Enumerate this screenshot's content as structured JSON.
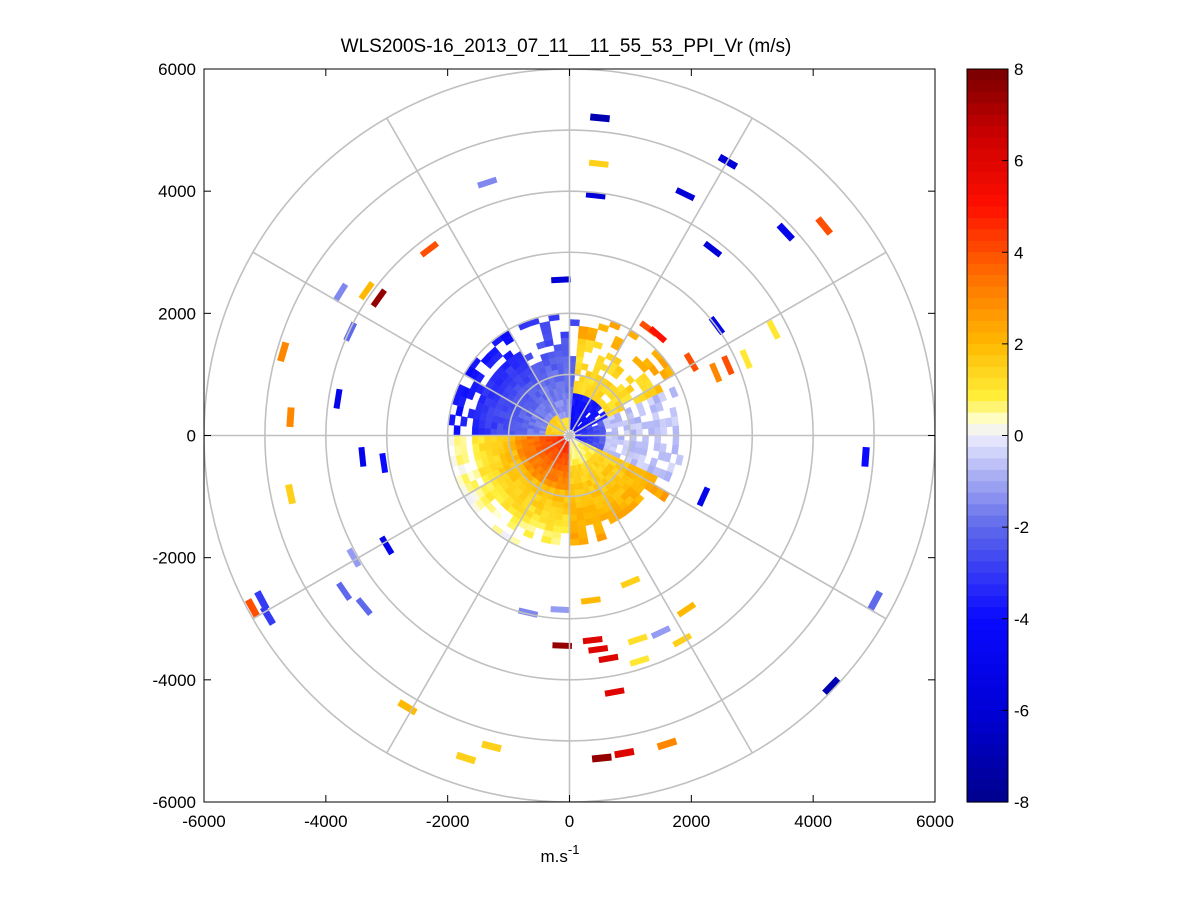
{
  "chart_data": {
    "type": "heatmap",
    "subtype": "polar-ppi-scan",
    "title": "WLS200S-16_2013_07_11__11_55_53_PPI_Vr (m/s)",
    "xlabel": {
      "base": "m.s",
      "superscript": "-1"
    },
    "ylabel": "",
    "xlim": [
      -6000,
      6000
    ],
    "ylim": [
      -6000,
      6000
    ],
    "xticks": [
      "-6000",
      "-4000",
      "-2000",
      "0",
      "2000",
      "4000",
      "6000"
    ],
    "yticks": [
      "6000",
      "4000",
      "2000",
      "0",
      "-2000",
      "-4000",
      "-6000"
    ],
    "xtick_values": [
      -6000,
      -4000,
      -2000,
      0,
      2000,
      4000,
      6000
    ],
    "ytick_values": [
      6000,
      4000,
      2000,
      0,
      -2000,
      -4000,
      -6000
    ],
    "polar_grid": {
      "ring_radii_m": [
        1000,
        2000,
        3000,
        4000,
        5000,
        6000
      ],
      "spoke_angles_deg": [
        0,
        30,
        60,
        90,
        120,
        150,
        180,
        210,
        240,
        270,
        300,
        330
      ],
      "color": "#c0c0c0"
    },
    "colorbar": {
      "min": -8,
      "max": 8,
      "ticks": [
        "8",
        "6",
        "4",
        "2",
        "0",
        "-2",
        "-4",
        "-6",
        "-8"
      ],
      "tick_values": [
        8,
        6,
        4,
        2,
        0,
        -2,
        -4,
        -6,
        -8
      ],
      "colormap": "blue-white-yellow-red"
    },
    "field_model": {
      "description": "Radial velocity (m/s) vs range and azimuth: near-field positive core in SW quadrant, negative NE/W sector, positive S/SE band, scattered far-range gates",
      "max_range_m": 2000
    },
    "isolated_gates": [
      {
        "x": 500,
        "y": 5200,
        "v": -7
      },
      {
        "x": 480,
        "y": 4450,
        "v": 1.5
      },
      {
        "x": 430,
        "y": 3930,
        "v": -6
      },
      {
        "x": -140,
        "y": 2550,
        "v": -6
      },
      {
        "x": 2600,
        "y": 4480,
        "v": -6
      },
      {
        "x": 1900,
        "y": 3950,
        "v": -6
      },
      {
        "x": 2350,
        "y": 3050,
        "v": -6
      },
      {
        "x": 3550,
        "y": 3330,
        "v": -5
      },
      {
        "x": 4180,
        "y": 3430,
        "v": 4
      },
      {
        "x": -1350,
        "y": 4140,
        "v": -1.5
      },
      {
        "x": -2300,
        "y": 3050,
        "v": 4
      },
      {
        "x": -3130,
        "y": 2250,
        "v": 7.5
      },
      {
        "x": -3330,
        "y": 2370,
        "v": 2
      },
      {
        "x": -3760,
        "y": 2340,
        "v": -1.5
      },
      {
        "x": -4700,
        "y": 1370,
        "v": 3
      },
      {
        "x": -4580,
        "y": 300,
        "v": 3
      },
      {
        "x": -4580,
        "y": -960,
        "v": 1.5
      },
      {
        "x": -3540,
        "y": -2000,
        "v": -1.2
      },
      {
        "x": -3700,
        "y": -2550,
        "v": -2
      },
      {
        "x": -3370,
        "y": -2800,
        "v": -2
      },
      {
        "x": -5050,
        "y": -2700,
        "v": -3
      },
      {
        "x": -5200,
        "y": -2830,
        "v": 4
      },
      {
        "x": -4950,
        "y": -2950,
        "v": -3
      },
      {
        "x": -2660,
        "y": -4450,
        "v": 2
      },
      {
        "x": -1700,
        "y": -5280,
        "v": 1.5
      },
      {
        "x": -1280,
        "y": -5090,
        "v": 1.5
      },
      {
        "x": 530,
        "y": -5280,
        "v": 7.5
      },
      {
        "x": 900,
        "y": -5200,
        "v": 6
      },
      {
        "x": 1600,
        "y": -5050,
        "v": 3
      },
      {
        "x": 740,
        "y": -4200,
        "v": 6
      },
      {
        "x": 1150,
        "y": -3690,
        "v": 1
      },
      {
        "x": 640,
        "y": -3650,
        "v": 6
      },
      {
        "x": 380,
        "y": -3350,
        "v": 6
      },
      {
        "x": 470,
        "y": -3500,
        "v": 6
      },
      {
        "x": -120,
        "y": -3440,
        "v": 7.5
      },
      {
        "x": 1120,
        "y": -3340,
        "v": 1.2
      },
      {
        "x": 1500,
        "y": -3220,
        "v": -1.2
      },
      {
        "x": 1920,
        "y": -2850,
        "v": 2
      },
      {
        "x": 1850,
        "y": -3350,
        "v": 1.5
      },
      {
        "x": 4300,
        "y": -4100,
        "v": -7
      },
      {
        "x": 5020,
        "y": -2700,
        "v": -2
      },
      {
        "x": 4860,
        "y": -350,
        "v": -4
      },
      {
        "x": 3350,
        "y": 1730,
        "v": 1
      },
      {
        "x": 2900,
        "y": 1250,
        "v": 1
      },
      {
        "x": 2600,
        "y": 1150,
        "v": 4
      },
      {
        "x": 2400,
        "y": 1030,
        "v": 3
      },
      {
        "x": 2420,
        "y": 1800,
        "v": -5
      },
      {
        "x": 1300,
        "y": 1750,
        "v": 4
      },
      {
        "x": 1450,
        "y": 1650,
        "v": 5
      },
      {
        "x": 2000,
        "y": 1200,
        "v": 4
      },
      {
        "x": -3000,
        "y": -1800,
        "v": -5
      },
      {
        "x": -3400,
        "y": -350,
        "v": -5
      },
      {
        "x": -3050,
        "y": -450,
        "v": -4
      },
      {
        "x": -3800,
        "y": 600,
        "v": -5
      },
      {
        "x": -3600,
        "y": 1700,
        "v": -2
      },
      {
        "x": 2200,
        "y": -1000,
        "v": -5
      },
      {
        "x": 1000,
        "y": -2400,
        "v": 1.5
      },
      {
        "x": -150,
        "y": -2850,
        "v": -1.2
      },
      {
        "x": -680,
        "y": -2900,
        "v": -1.5
      },
      {
        "x": 350,
        "y": -2700,
        "v": 2
      }
    ]
  }
}
